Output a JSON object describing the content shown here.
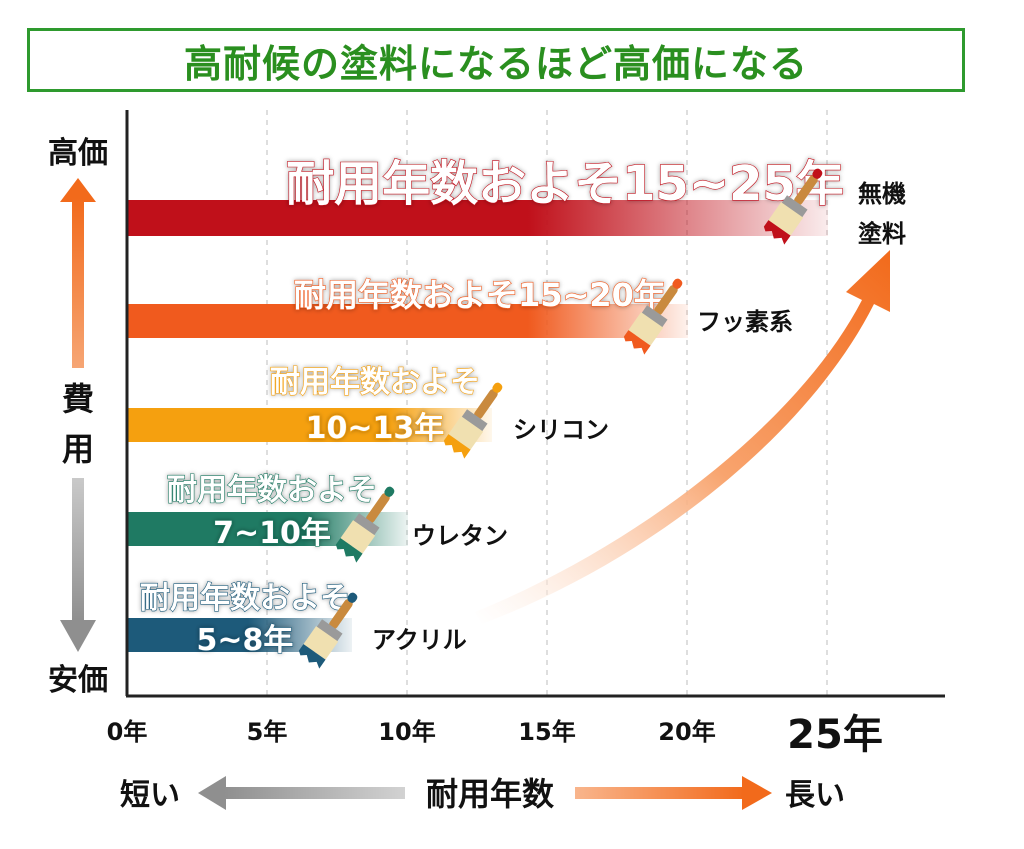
{
  "title": "高耐候の塗料になるほど高価になる",
  "chart_data": {
    "type": "bar",
    "orientation": "horizontal",
    "title": "高耐候の塗料になるほど高価になる",
    "xlabel": "耐用年数",
    "ylabel": "費用",
    "x_tick_labels": [
      "0年",
      "5年",
      "10年",
      "15年",
      "20年",
      "25年"
    ],
    "x_ticks": [
      0,
      5,
      10,
      15,
      20,
      25
    ],
    "xlim": [
      0,
      29
    ],
    "grid": "vertical-dashed",
    "y_top_label": "高価",
    "y_bottom_label": "安価",
    "x_left_label": "短い",
    "x_right_label": "長い",
    "series": [
      {
        "category": "無機\n塗料",
        "name_lines": [
          "無機",
          "塗料"
        ],
        "min": 15,
        "max": 25,
        "label_lines": [
          "耐用年数およそ15~25年"
        ],
        "color": "#c0101a"
      },
      {
        "category": "フッ素系",
        "name_lines": [
          "フッ素系"
        ],
        "min": 15,
        "max": 20,
        "label_lines": [
          "耐用年数およそ15~20年"
        ],
        "color": "#f05a1e"
      },
      {
        "category": "シリコン",
        "name_lines": [
          "シリコン"
        ],
        "min": 10,
        "max": 13,
        "label_lines": [
          "耐用年数およそ",
          "10~13年"
        ],
        "color": "#f5a00f"
      },
      {
        "category": "ウレタン",
        "name_lines": [
          "ウレタン"
        ],
        "min": 7,
        "max": 10,
        "label_lines": [
          "耐用年数およそ",
          "7~10年"
        ],
        "color": "#1f7a63"
      },
      {
        "category": "アクリル",
        "name_lines": [
          "アクリル"
        ],
        "min": 5,
        "max": 8,
        "label_lines": [
          "耐用年数およそ",
          "5~8年"
        ],
        "color": "#1d5a7a"
      }
    ]
  },
  "colors": {
    "title_green": "#2a8f1f",
    "arrow_orange": "#f26a1b",
    "arrow_gray": "#9a9a9a"
  },
  "icons": [
    "paintbrush-icon"
  ]
}
